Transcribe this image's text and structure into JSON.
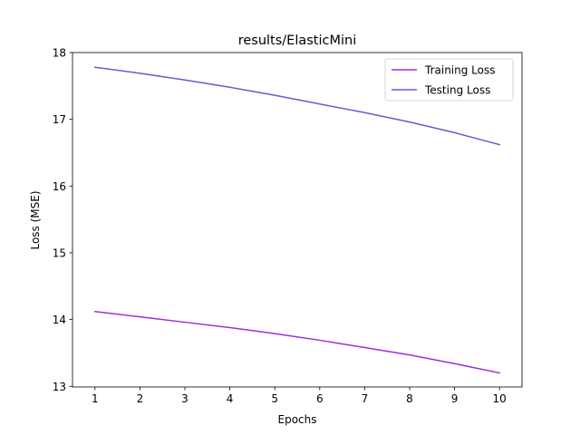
{
  "chart_data": {
    "type": "line",
    "title": "results/ElasticMini",
    "xlabel": "Epochs",
    "ylabel": "Loss (MSE)",
    "x": [
      1,
      2,
      3,
      4,
      5,
      6,
      7,
      8,
      9,
      10
    ],
    "xlim": [
      0.5,
      10.5
    ],
    "ylim": [
      12.99,
      18.0
    ],
    "xticks": [
      "1",
      "2",
      "3",
      "4",
      "5",
      "6",
      "7",
      "8",
      "9",
      "10"
    ],
    "yticks": [
      "13",
      "14",
      "15",
      "16",
      "17",
      "18"
    ],
    "grid": false,
    "legend_position": "top-right",
    "series": [
      {
        "name": "Training Loss",
        "color": "#9b30d9",
        "values": [
          14.12,
          14.04,
          13.96,
          13.88,
          13.79,
          13.69,
          13.58,
          13.47,
          13.34,
          13.2
        ]
      },
      {
        "name": "Testing Loss",
        "color": "#6a5acd",
        "values": [
          17.78,
          17.69,
          17.59,
          17.48,
          17.36,
          17.23,
          17.1,
          16.96,
          16.8,
          16.62
        ]
      }
    ]
  }
}
